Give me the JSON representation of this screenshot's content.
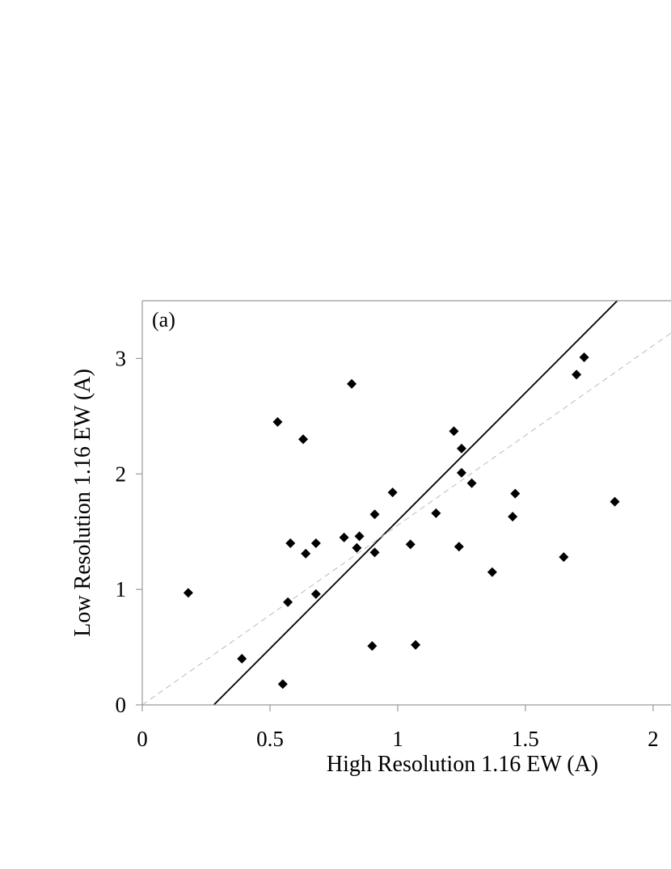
{
  "chart_data": {
    "type": "scatter",
    "panel_label": "(a)",
    "xlabel": "High Resolution 1.16 EW (A)",
    "ylabel": "Low Resolution 1.16 EW (A)",
    "xlim": [
      0,
      2.07
    ],
    "ylim": [
      0,
      3.5
    ],
    "x_ticks": [
      0,
      0.5,
      1,
      1.5,
      2
    ],
    "x_tick_labels": [
      "0",
      "0.5",
      "1",
      "1.5",
      "2"
    ],
    "y_ticks": [
      0,
      1,
      2,
      3
    ],
    "y_tick_labels": [
      "0",
      "1",
      "2",
      "3"
    ],
    "grid": false,
    "legend": "none",
    "colors": {
      "points": "#000000",
      "fit_line": "#000000",
      "reference_line": "#bbbbbb",
      "frame": "#9a9a9a"
    },
    "series": [
      {
        "marker": "diamond",
        "points": [
          [
            0.18,
            0.97
          ],
          [
            0.39,
            0.4
          ],
          [
            0.53,
            2.45
          ],
          [
            0.55,
            0.18
          ],
          [
            0.57,
            0.89
          ],
          [
            0.58,
            1.4
          ],
          [
            0.63,
            2.3
          ],
          [
            0.64,
            1.31
          ],
          [
            0.68,
            1.4
          ],
          [
            0.68,
            0.96
          ],
          [
            0.79,
            1.45
          ],
          [
            0.82,
            2.78
          ],
          [
            0.84,
            1.36
          ],
          [
            0.85,
            1.46
          ],
          [
            0.9,
            0.51
          ],
          [
            0.91,
            1.65
          ],
          [
            0.91,
            1.32
          ],
          [
            0.98,
            1.84
          ],
          [
            1.05,
            1.39
          ],
          [
            1.07,
            0.52
          ],
          [
            1.15,
            1.66
          ],
          [
            1.22,
            2.37
          ],
          [
            1.24,
            1.37
          ],
          [
            1.25,
            2.22
          ],
          [
            1.25,
            2.01
          ],
          [
            1.29,
            1.92
          ],
          [
            1.37,
            1.15
          ],
          [
            1.45,
            1.63
          ],
          [
            1.46,
            1.83
          ],
          [
            1.65,
            1.28
          ],
          [
            1.7,
            2.86
          ],
          [
            1.73,
            3.01
          ],
          [
            1.85,
            1.76
          ]
        ]
      }
    ],
    "lines": [
      {
        "style": "solid",
        "x": [
          0.28,
          1.86
        ],
        "y": [
          0,
          3.5
        ]
      },
      {
        "style": "dashed",
        "x": [
          0,
          2.07
        ],
        "y": [
          0,
          3.22
        ]
      }
    ]
  }
}
